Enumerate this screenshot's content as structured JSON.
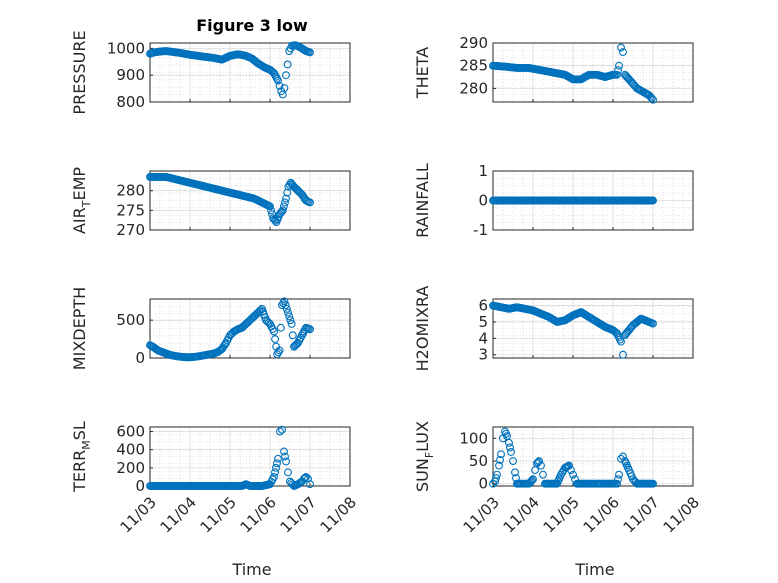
{
  "figure": {
    "title": "Figure 3 low",
    "x_axis_label": "Time",
    "x_tick_labels": [
      "11/03",
      "11/04",
      "11/05",
      "11/06",
      "11/07",
      "11/08"
    ]
  },
  "chart_data": [
    {
      "type": "scatter",
      "title": "Figure 3 low",
      "ylabel": "PRESSURE",
      "xlabel": "",
      "ylim": [
        800,
        1020
      ],
      "yticks": [
        "800",
        "900",
        "1000"
      ],
      "grid": true,
      "marker_color": "#0072bd",
      "x": [
        3.0,
        3.1,
        3.25,
        3.4,
        3.6,
        3.8,
        4.0,
        4.2,
        4.4,
        4.6,
        4.8,
        5.0,
        5.2,
        5.4,
        5.55,
        5.7,
        5.85,
        6.0,
        6.1,
        6.2,
        6.24,
        6.28,
        6.32,
        6.36,
        6.4,
        6.44,
        6.48,
        6.55,
        6.62,
        6.7,
        6.8,
        6.9,
        7.0
      ],
      "y": [
        980,
        985,
        988,
        990,
        986,
        982,
        976,
        972,
        968,
        964,
        958,
        972,
        978,
        972,
        962,
        944,
        930,
        920,
        908,
        880,
        860,
        840,
        828,
        852,
        900,
        940,
        990,
        1010,
        1012,
        1008,
        1000,
        990,
        985
      ]
    },
    {
      "type": "scatter",
      "title": "",
      "ylabel": "THETA",
      "xlabel": "",
      "ylim": [
        277,
        290
      ],
      "yticks": [
        "280",
        "285",
        "290"
      ],
      "grid": true,
      "marker_color": "#0072bd",
      "x": [
        3.0,
        3.3,
        3.6,
        3.9,
        4.2,
        4.5,
        4.8,
        5.0,
        5.2,
        5.4,
        5.6,
        5.8,
        6.0,
        6.1,
        6.15,
        6.2,
        6.25,
        6.3,
        6.4,
        6.5,
        6.6,
        6.7,
        6.8,
        6.9,
        7.0
      ],
      "y": [
        285,
        284.8,
        284.5,
        284.5,
        284,
        283.5,
        283,
        282,
        282,
        283,
        283,
        282.5,
        283,
        283,
        285,
        289,
        288,
        283,
        282,
        281,
        280,
        279.5,
        279,
        278.5,
        277.5
      ]
    },
    {
      "type": "scatter",
      "title": "",
      "ylabel": "AIR",
      "ylabel_sub": "T",
      "ylabel_suffix": "EMP",
      "xlabel": "",
      "ylim": [
        270,
        285
      ],
      "yticks": [
        "270",
        "275",
        "280"
      ],
      "grid": true,
      "marker_color": "#0072bd",
      "x": [
        3.0,
        3.2,
        3.4,
        3.6,
        3.8,
        4.0,
        4.2,
        4.4,
        4.6,
        4.8,
        5.0,
        5.2,
        5.4,
        5.6,
        5.8,
        6.0,
        6.08,
        6.16,
        6.24,
        6.32,
        6.4,
        6.46,
        6.52,
        6.6,
        6.7,
        6.8,
        6.9,
        7.0
      ],
      "y": [
        283.5,
        283.5,
        283.5,
        283,
        282.5,
        282,
        281.5,
        281,
        280.5,
        280,
        279.5,
        279,
        278.5,
        278,
        277,
        276,
        273,
        272,
        274,
        275,
        278,
        281,
        282,
        281,
        280,
        279,
        277.5,
        277
      ]
    },
    {
      "type": "scatter",
      "title": "",
      "ylabel": "RAINFALL",
      "xlabel": "",
      "ylim": [
        -1,
        1
      ],
      "yticks": [
        "-1",
        "0",
        "1"
      ],
      "grid": true,
      "marker_color": "#0072bd",
      "x": [
        3.0,
        3.5,
        4.0,
        4.5,
        5.0,
        5.5,
        6.0,
        6.5,
        7.0
      ],
      "y": [
        0,
        0,
        0,
        0,
        0,
        0,
        0,
        0,
        0
      ]
    },
    {
      "type": "scatter",
      "title": "",
      "ylabel": "MIXDEPTH",
      "xlabel": "",
      "ylim": [
        0,
        780
      ],
      "yticks": [
        "0",
        "500"
      ],
      "grid": true,
      "marker_color": "#0072bd",
      "x": [
        3.0,
        3.1,
        3.2,
        3.3,
        3.4,
        3.5,
        3.6,
        3.7,
        3.8,
        3.9,
        4.0,
        4.1,
        4.2,
        4.3,
        4.4,
        4.5,
        4.6,
        4.7,
        4.8,
        4.9,
        5.0,
        5.1,
        5.2,
        5.3,
        5.4,
        5.5,
        5.6,
        5.7,
        5.8,
        5.9,
        6.0,
        6.1,
        6.18,
        6.24,
        6.3,
        6.36,
        6.42,
        6.48,
        6.54,
        6.6,
        6.7,
        6.8,
        6.9,
        7.0
      ],
      "y": [
        170,
        140,
        100,
        80,
        60,
        40,
        30,
        20,
        15,
        10,
        10,
        15,
        20,
        30,
        40,
        50,
        60,
        80,
        120,
        200,
        300,
        350,
        380,
        400,
        450,
        500,
        550,
        600,
        650,
        500,
        450,
        350,
        50,
        100,
        700,
        750,
        650,
        550,
        450,
        150,
        200,
        300,
        400,
        380
      ]
    },
    {
      "type": "scatter",
      "title": "",
      "ylabel": "H2OMIXRA",
      "xlabel": "",
      "ylim": [
        2.8,
        6.4
      ],
      "yticks": [
        "3",
        "4",
        "5",
        "6"
      ],
      "grid": true,
      "marker_color": "#0072bd",
      "x": [
        3.0,
        3.2,
        3.4,
        3.6,
        3.8,
        4.0,
        4.2,
        4.4,
        4.6,
        4.8,
        5.0,
        5.2,
        5.4,
        5.6,
        5.8,
        6.0,
        6.1,
        6.2,
        6.25,
        6.3,
        6.4,
        6.5,
        6.6,
        6.7,
        6.8,
        6.9,
        7.0
      ],
      "y": [
        6,
        5.9,
        5.8,
        5.9,
        5.8,
        5.7,
        5.5,
        5.3,
        5.0,
        5.1,
        5.4,
        5.6,
        5.3,
        5.0,
        4.7,
        4.5,
        4.3,
        3.8,
        3.0,
        4.2,
        4.5,
        4.8,
        5.0,
        5.2,
        5.1,
        5.0,
        4.9
      ]
    },
    {
      "type": "scatter",
      "title": "",
      "ylabel": "TERR",
      "ylabel_sub": "M",
      "ylabel_suffix": "SL",
      "xlabel": "Time",
      "ylim": [
        0,
        650
      ],
      "yticks": [
        "0",
        "200",
        "400",
        "600"
      ],
      "grid": true,
      "marker_color": "#0072bd",
      "x": [
        3.0,
        3.5,
        4.0,
        4.5,
        5.0,
        5.3,
        5.4,
        5.5,
        5.6,
        5.8,
        6.0,
        6.1,
        6.2,
        6.25,
        6.3,
        6.35,
        6.4,
        6.45,
        6.5,
        6.6,
        6.7,
        6.8,
        6.85,
        6.9,
        6.95,
        7.0
      ],
      "y": [
        0,
        0,
        0,
        0,
        0,
        0,
        20,
        0,
        0,
        0,
        20,
        100,
        300,
        600,
        620,
        380,
        270,
        150,
        50,
        0,
        20,
        50,
        80,
        100,
        80,
        20
      ]
    },
    {
      "type": "scatter",
      "title": "",
      "ylabel": "SUN",
      "ylabel_sub": "F",
      "ylabel_suffix": "LUX",
      "xlabel": "Time",
      "ylim": [
        -5,
        125
      ],
      "yticks": [
        "0",
        "50",
        "100"
      ],
      "grid": true,
      "marker_color": "#0072bd",
      "x": [
        3.0,
        3.05,
        3.1,
        3.15,
        3.2,
        3.25,
        3.3,
        3.35,
        3.4,
        3.45,
        3.5,
        3.55,
        3.6,
        3.7,
        3.8,
        3.9,
        4.0,
        4.05,
        4.1,
        4.15,
        4.2,
        4.25,
        4.3,
        4.4,
        4.6,
        4.7,
        4.8,
        4.9,
        4.95,
        5.0,
        5.05,
        5.1,
        5.2,
        5.4,
        5.5,
        5.6,
        5.7,
        5.8,
        6.0,
        6.1,
        6.15,
        6.2,
        6.25,
        6.3,
        6.4,
        6.5,
        6.6,
        6.8,
        7.0
      ],
      "y": [
        0,
        5,
        20,
        40,
        65,
        100,
        115,
        105,
        90,
        70,
        50,
        25,
        0,
        0,
        0,
        0,
        10,
        30,
        45,
        50,
        40,
        20,
        0,
        0,
        0,
        20,
        35,
        40,
        30,
        20,
        10,
        0,
        0,
        0,
        0,
        0,
        0,
        0,
        0,
        0,
        20,
        55,
        60,
        50,
        30,
        10,
        0,
        0,
        0
      ]
    }
  ]
}
